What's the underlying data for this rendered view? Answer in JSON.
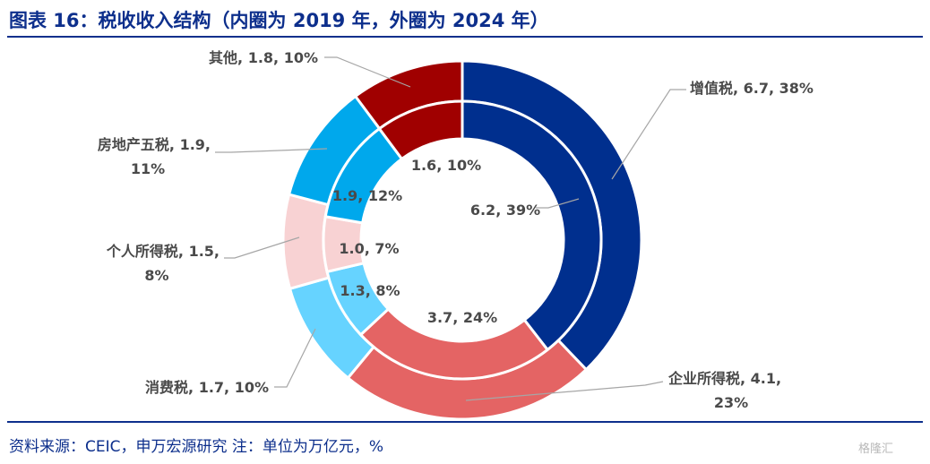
{
  "title": "图表 16：税收收入结构（内圈为 2019 年，外圈为 2024 年）",
  "source": "资料来源：CEIC，申万宏源研究 注：单位为万亿元，%",
  "watermark": "格隆汇",
  "chart_data": {
    "type": "donut",
    "title": "税收收入结构（内圈为 2019 年，外圈为 2024 年）",
    "unit": "万亿元，%",
    "categories": [
      "增值税",
      "企业所得税",
      "消费税",
      "个人所得税",
      "房地产五税",
      "其他"
    ],
    "colors": [
      "#002f8e",
      "#e46464",
      "#66d3ff",
      "#f8d2d3",
      "#00a8ec",
      "#a00000"
    ],
    "series": [
      {
        "name": "2024",
        "ring": "outer",
        "values": [
          6.7,
          4.1,
          1.7,
          1.5,
          1.9,
          1.8
        ],
        "percents": [
          38,
          23,
          10,
          8,
          11,
          10
        ],
        "labels": [
          [
            "增值税, 6.7, 38%"
          ],
          [
            "企业所得税, 4.1,",
            "23%"
          ],
          [
            "消费税, 1.7, 10%"
          ],
          [
            "个人所得税, 1.5,",
            "8%"
          ],
          [
            "房地产五税, 1.9,",
            "11%"
          ],
          [
            "其他, 1.8, 10%"
          ]
        ]
      },
      {
        "name": "2019",
        "ring": "inner",
        "values": [
          6.2,
          3.7,
          1.3,
          1.0,
          1.9,
          1.6
        ],
        "percents": [
          39,
          24,
          8,
          7,
          12,
          10
        ],
        "labels": [
          "6.2, 39%",
          "3.7, 24%",
          "1.3, 8%",
          "1.0, 7%",
          "1.9, 12%",
          "1.6, 10%"
        ]
      }
    ]
  }
}
